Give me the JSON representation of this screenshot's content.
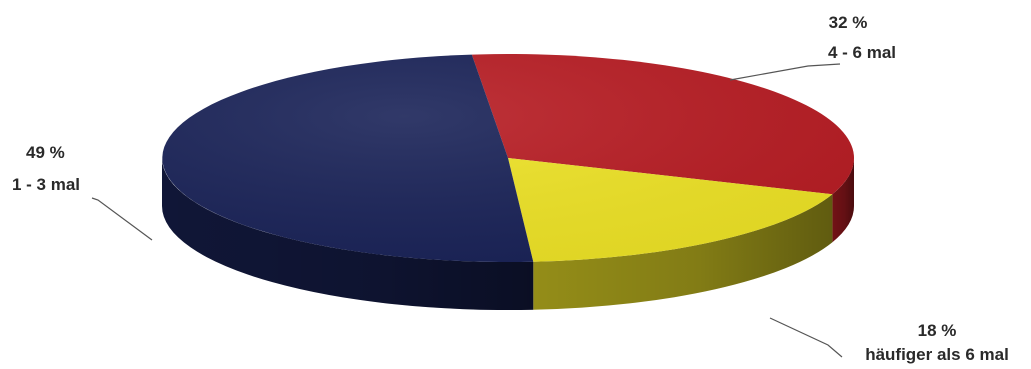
{
  "chart_data": {
    "type": "pie",
    "style": "3d",
    "slices": [
      {
        "category": "4 - 6 mal",
        "value": 32,
        "value_label": "32 %",
        "color": "#b81d24"
      },
      {
        "category": "häufiger als 6 mal",
        "value": 18,
        "value_label": "18 %",
        "color": "#eee326"
      },
      {
        "category": "1 - 3 mal",
        "value": 49,
        "value_label": "49 %",
        "color": "#1a2358"
      }
    ],
    "unit": "%"
  }
}
